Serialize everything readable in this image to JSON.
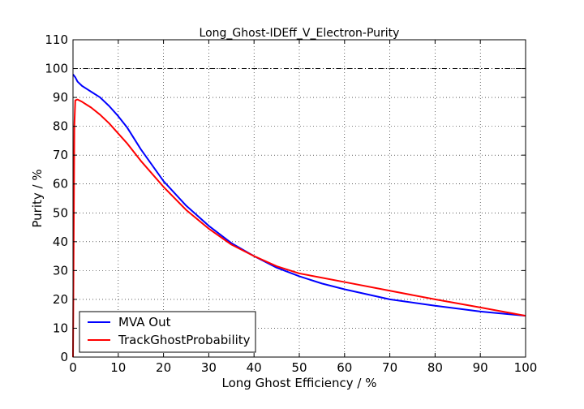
{
  "chart_data": {
    "type": "line",
    "title": "Long_Ghost-IDEff_V_Electron-Purity",
    "xlabel": "Long Ghost Efficiency / %",
    "ylabel": "Purity / %",
    "xlim": [
      0,
      100
    ],
    "ylim": [
      0,
      110
    ],
    "xticks": [
      "0",
      "10",
      "20",
      "30",
      "40",
      "50",
      "60",
      "70",
      "80",
      "90",
      "100"
    ],
    "yticks": [
      "0",
      "10",
      "20",
      "30",
      "40",
      "50",
      "60",
      "70",
      "80",
      "90",
      "100",
      "110"
    ],
    "grid": true,
    "reference_line_y": 100,
    "legend_position": "lower-left",
    "series": [
      {
        "name": "MVA Out",
        "color": "#0000ff",
        "x": [
          0,
          0.5,
          1,
          2,
          3,
          4,
          6,
          8,
          10,
          12,
          15,
          20,
          25,
          30,
          35,
          40,
          45,
          50,
          55,
          60,
          70,
          80,
          90,
          100
        ],
        "y": [
          98,
          97,
          95.5,
          94,
          93,
          92,
          90,
          87,
          83.5,
          79.5,
          72,
          61,
          52.5,
          45.5,
          39.5,
          35,
          31,
          28,
          25.5,
          23.5,
          20,
          17.8,
          15.8,
          14.3
        ]
      },
      {
        "name": "TrackGhostProbability",
        "color": "#ff0000",
        "x": [
          0,
          0.15,
          0.3,
          0.5,
          1,
          2,
          3,
          4,
          6,
          8,
          10,
          12,
          15,
          20,
          25,
          30,
          35,
          40,
          45,
          50,
          55,
          60,
          70,
          80,
          90,
          100
        ],
        "y": [
          0,
          40,
          80,
          89,
          89.3,
          88.5,
          87.5,
          86.5,
          84,
          81,
          77.5,
          74,
          68,
          59,
          51,
          44.5,
          39,
          35,
          31.5,
          29,
          27.5,
          26,
          23,
          20,
          17.2,
          14.3
        ]
      }
    ]
  }
}
